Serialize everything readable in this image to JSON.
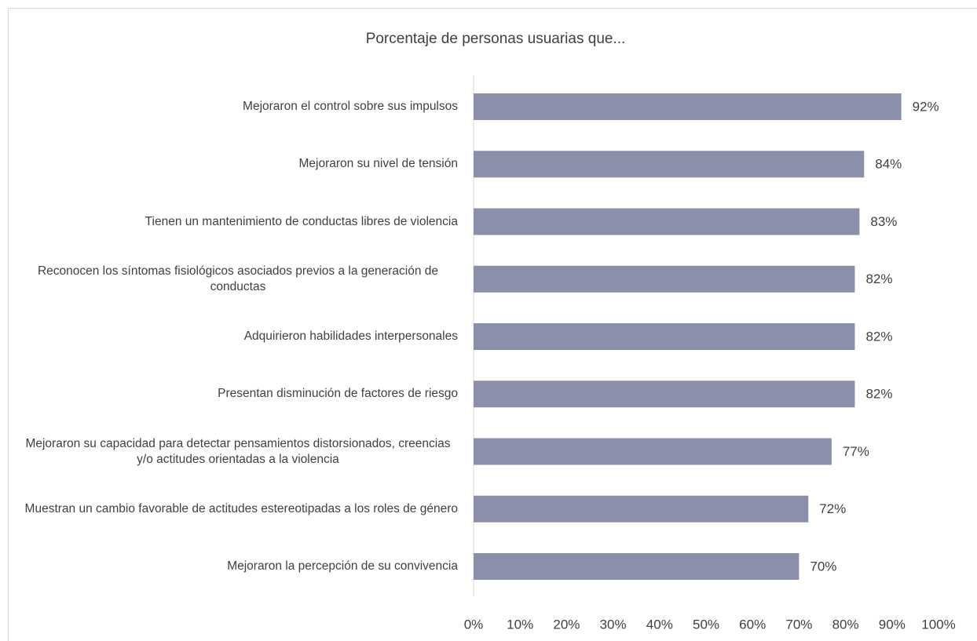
{
  "chart_data": {
    "type": "bar",
    "orientation": "horizontal",
    "title": "Porcentaje de personas usuarias que...",
    "categories": [
      "Mejoraron el control sobre sus impulsos",
      "Mejoraron su nivel de tensión",
      "Tienen un mantenimiento de conductas libres de violencia",
      "Reconocen los síntomas fisiológicos asociados previos a la generación de conductas",
      "Adquirieron habilidades interpersonales",
      "Presentan disminución de factores de riesgo",
      "Mejoraron su capacidad para detectar pensamientos distorsionados, creencias y/o actitudes orientadas a la violencia",
      "Muestran un cambio favorable de actitudes estereotipadas a los roles de género",
      "Mejoraron la percepción de su convivencia"
    ],
    "values": [
      92,
      84,
      83,
      82,
      82,
      82,
      77,
      72,
      70
    ],
    "value_labels": [
      "92%",
      "84%",
      "83%",
      "82%",
      "82%",
      "82%",
      "77%",
      "72%",
      "70%"
    ],
    "color": "#8a90aa",
    "xlim": [
      0,
      100
    ],
    "xticks": [
      {
        "value": 0,
        "label": "0%"
      },
      {
        "value": 10,
        "label": "10%"
      },
      {
        "value": 20,
        "label": "20%"
      },
      {
        "value": 30,
        "label": "30%"
      },
      {
        "value": 40,
        "label": "40%"
      },
      {
        "value": 50,
        "label": "50%"
      },
      {
        "value": 60,
        "label": "60%"
      },
      {
        "value": 70,
        "label": "70%"
      },
      {
        "value": 80,
        "label": "80%"
      },
      {
        "value": 90,
        "label": "90%"
      },
      {
        "value": 100,
        "label": "100%"
      }
    ],
    "grid": false
  }
}
